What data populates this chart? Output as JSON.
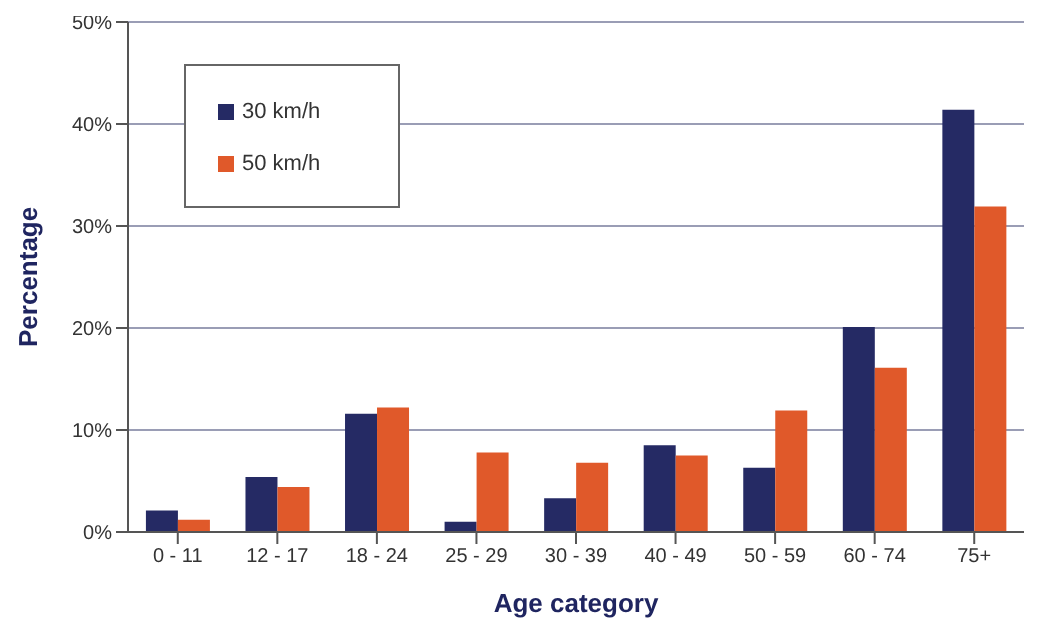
{
  "chart_data": {
    "type": "bar",
    "xlabel": "Age category",
    "ylabel": "Percentage",
    "categories": [
      "0 - 11",
      "12 - 17",
      "18 - 24",
      "25 - 29",
      "30 - 39",
      "40 - 49",
      "50 - 59",
      "60 - 74",
      "75+"
    ],
    "series": [
      {
        "name": "30 km/h",
        "color": "#252a64",
        "values": [
          2.1,
          5.4,
          11.6,
          1.0,
          3.3,
          8.5,
          6.3,
          20.1,
          41.4
        ]
      },
      {
        "name": "50 km/h",
        "color": "#e0592a",
        "values": [
          1.2,
          4.4,
          12.2,
          7.8,
          6.8,
          7.5,
          11.9,
          16.1,
          31.9
        ]
      }
    ],
    "ylim": [
      0,
      50
    ],
    "yticks": [
      {
        "value": 0,
        "label": "0%"
      },
      {
        "value": 10,
        "label": "10%"
      },
      {
        "value": 20,
        "label": "20%"
      },
      {
        "value": 30,
        "label": "30%"
      },
      {
        "value": 40,
        "label": "40%"
      },
      {
        "value": 50,
        "label": "50%"
      }
    ],
    "grid": "y",
    "legend": "top left"
  }
}
